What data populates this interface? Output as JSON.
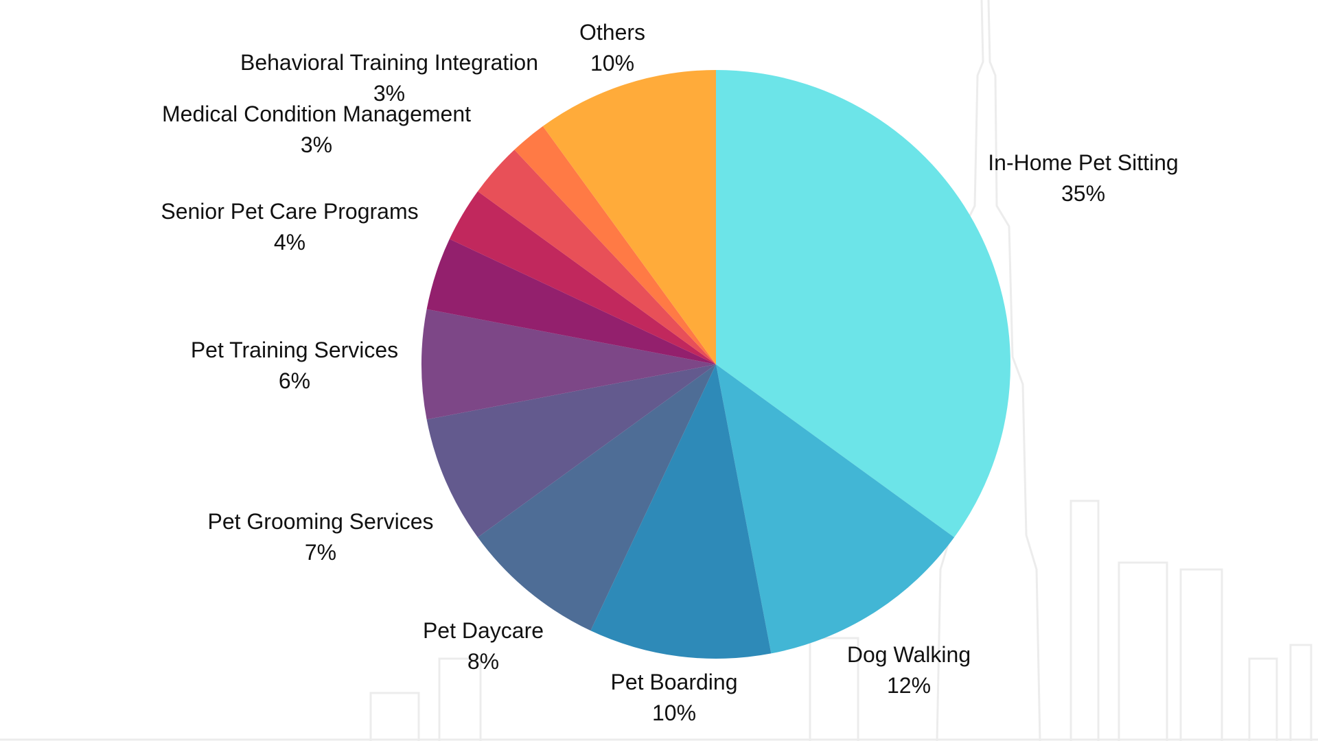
{
  "chart_data": {
    "type": "pie",
    "start_angle_deg": 0,
    "direction": "clockwise",
    "slices": [
      {
        "label": "In-Home Pet Sitting",
        "value": 35,
        "value_label": "35%",
        "color": "#6CE4E8"
      },
      {
        "label": "Dog Walking",
        "value": 12,
        "value_label": "12%",
        "color": "#42B6D5"
      },
      {
        "label": "Pet Boarding",
        "value": 10,
        "value_label": "10%",
        "color": "#2E8AB8"
      },
      {
        "label": "Pet Daycare",
        "value": 8,
        "value_label": "8%",
        "color": "#4E6D96"
      },
      {
        "label": "Pet Grooming Services",
        "value": 7,
        "value_label": "7%",
        "color": "#635A8E"
      },
      {
        "label": "Pet Training Services",
        "value": 6,
        "value_label": "6%",
        "color": "#7D4787"
      },
      {
        "label": "Senior Pet Care Programs",
        "value": 4,
        "value_label": "4%",
        "color": "#93206D"
      },
      {
        "label": "Medical Condition Management",
        "value": 3,
        "value_label": "3%",
        "color": "#C1285D"
      },
      {
        "label": "Behavioral Training Integration",
        "value": 3,
        "value_label": "3%",
        "color": "#E85058"
      },
      {
        "label": "",
        "value": 2,
        "value_label": "",
        "color": "#FF7A45"
      },
      {
        "label": "Others",
        "value": 10,
        "value_label": "10%",
        "color": "#FFAB3A"
      }
    ]
  }
}
